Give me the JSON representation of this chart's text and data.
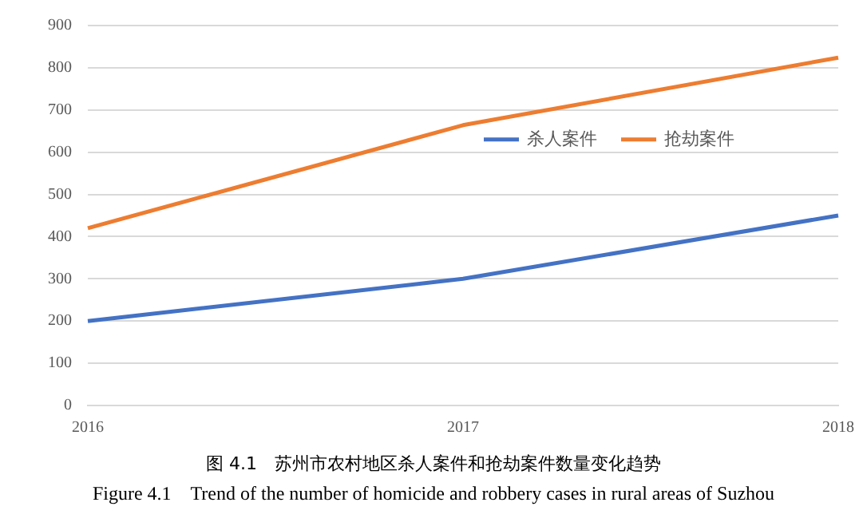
{
  "chart_data": {
    "type": "line",
    "categories": [
      "2016",
      "2017",
      "2018"
    ],
    "series": [
      {
        "name": "杀人案件",
        "color": "#4472c4",
        "values": [
          200,
          300,
          450
        ]
      },
      {
        "name": "抢劫案件",
        "color": "#ed7d31",
        "values": [
          420,
          664,
          824
        ]
      }
    ],
    "ylim": [
      0,
      900
    ],
    "yticks": [
      0,
      100,
      200,
      300,
      400,
      500,
      600,
      700,
      800,
      900
    ],
    "grid": "y",
    "legend": "right",
    "marker": "none",
    "line_style": "solid",
    "annotations": [
      "图 4.1　苏州市农村地区杀人案件和抢劫案件数量变化趋势",
      "Figure 4.1　Trend of the number of homicide and robbery cases in rural areas of Suzhou"
    ]
  }
}
